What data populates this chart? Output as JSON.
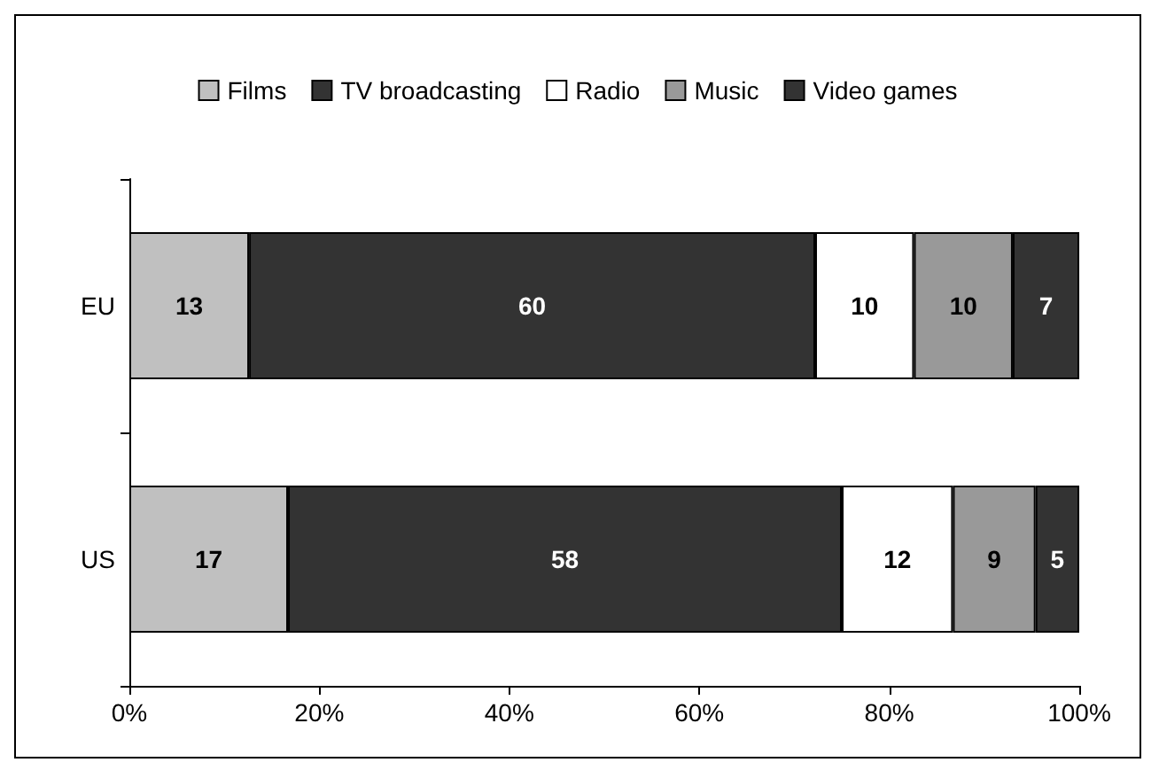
{
  "chart_data": {
    "type": "bar",
    "orientation": "horizontal",
    "stacked": true,
    "categories": [
      "EU",
      "US"
    ],
    "series": [
      {
        "name": "Films",
        "color": "#c0c0c0",
        "values": [
          12.6,
          16.7
        ],
        "value_labels": [
          "13",
          "17"
        ]
      },
      {
        "name": "TV broadcasting",
        "color": "#333333",
        "values": [
          59.6,
          58.3
        ],
        "value_labels": [
          "60",
          "58"
        ]
      },
      {
        "name": "Radio",
        "color": "#ffffff",
        "values": [
          10.4,
          11.7
        ],
        "value_labels": [
          "10",
          "12"
        ]
      },
      {
        "name": "Music",
        "color": "#999999",
        "values": [
          10.4,
          8.7
        ],
        "value_labels": [
          "10",
          "9"
        ]
      },
      {
        "name": "Video games",
        "color": "#333333",
        "values": [
          7,
          4.6
        ],
        "value_labels": [
          "7",
          "5"
        ]
      }
    ],
    "xlim": [
      0,
      100
    ],
    "xticks": [
      {
        "value": 0,
        "label": "0%"
      },
      {
        "value": 20,
        "label": "20%"
      },
      {
        "value": 40,
        "label": "40%"
      },
      {
        "value": 60,
        "label": "60%"
      },
      {
        "value": 80,
        "label": "80%"
      },
      {
        "value": 100,
        "label": "100%"
      }
    ],
    "grid": false,
    "legend": "top"
  }
}
